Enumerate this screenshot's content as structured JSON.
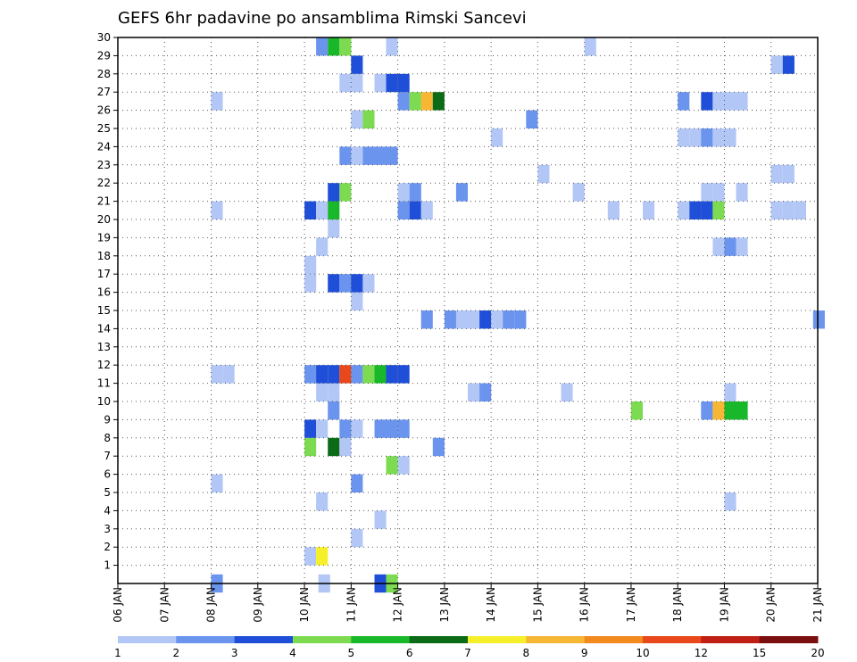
{
  "chart_data": {
    "type": "heatmap",
    "title": "GEFS 6hr padavine po ansamblima Rimski Sancevi",
    "xlabel": "",
    "ylabel": "",
    "x_tick_labels": [
      "06 JAN",
      "07 JAN",
      "08 JAN",
      "09 JAN",
      "10 JAN",
      "11 JAN",
      "12 JAN",
      "13 JAN",
      "14 JAN",
      "15 JAN",
      "16 JAN",
      "17 JAN",
      "18 JAN",
      "19 JAN",
      "20 JAN",
      "21 JAN"
    ],
    "x_range_days": [
      0,
      15
    ],
    "y_tick_labels": [
      "1",
      "2",
      "3",
      "4",
      "5",
      "6",
      "7",
      "8",
      "9",
      "10",
      "11",
      "12",
      "13",
      "14",
      "15",
      "16",
      "17",
      "18",
      "19",
      "20",
      "21",
      "22",
      "23",
      "24",
      "25",
      "26",
      "27",
      "28",
      "29",
      "30"
    ],
    "y_range_members": [
      0,
      30
    ],
    "grid": true,
    "grid_style": "dotted",
    "colorbar": {
      "position": "bottom",
      "labels": [
        "1",
        "2",
        "3",
        "4",
        "5",
        "6",
        "7",
        "8",
        "9",
        "10",
        "12",
        "15",
        "20"
      ],
      "colors": [
        "#b3c7f7",
        "#6a94ee",
        "#1f4fd8",
        "#7ddb52",
        "#19b82a",
        "#0b6b16",
        "#f5f02a",
        "#f7b634",
        "#f28a1d",
        "#e9481c",
        "#c02014",
        "#7a0f0f"
      ]
    },
    "cells_note": "each cell = [day_offset_from_06_JAN, member, precipitation_class]",
    "cells": [
      [
        4.3,
        0,
        1
      ],
      [
        5.5,
        0,
        3
      ],
      [
        5.75,
        0,
        4
      ],
      [
        2.0,
        0,
        2
      ],
      [
        4.0,
        1.5,
        1
      ],
      [
        4.25,
        1.5,
        7
      ],
      [
        5.0,
        2.5,
        1
      ],
      [
        5.5,
        3.5,
        1
      ],
      [
        4.25,
        4.5,
        1
      ],
      [
        13.0,
        4.5,
        1
      ],
      [
        2.0,
        5.5,
        1
      ],
      [
        5.0,
        5.5,
        2
      ],
      [
        5.75,
        6.5,
        4
      ],
      [
        6.0,
        6.5,
        1
      ],
      [
        4.0,
        7.5,
        4
      ],
      [
        4.5,
        7.5,
        6
      ],
      [
        4.75,
        7.5,
        1
      ],
      [
        6.75,
        7.5,
        2
      ],
      [
        4.0,
        8.5,
        3
      ],
      [
        4.25,
        8.5,
        1
      ],
      [
        4.75,
        8.5,
        2
      ],
      [
        5.0,
        8.5,
        1
      ],
      [
        5.5,
        8.5,
        2
      ],
      [
        5.75,
        8.5,
        2
      ],
      [
        6.0,
        8.5,
        2
      ],
      [
        4.5,
        9.5,
        2
      ],
      [
        11.0,
        9.5,
        4
      ],
      [
        12.5,
        9.5,
        2
      ],
      [
        12.75,
        9.5,
        8
      ],
      [
        13.0,
        9.5,
        5
      ],
      [
        13.25,
        9.5,
        5
      ],
      [
        4.25,
        10.5,
        1
      ],
      [
        4.5,
        10.5,
        1
      ],
      [
        7.5,
        10.5,
        1
      ],
      [
        7.75,
        10.5,
        2
      ],
      [
        9.5,
        10.5,
        1
      ],
      [
        13.0,
        10.5,
        1
      ],
      [
        2.0,
        11.5,
        1
      ],
      [
        2.25,
        11.5,
        1
      ],
      [
        4.0,
        11.5,
        2
      ],
      [
        4.25,
        11.5,
        3
      ],
      [
        4.5,
        11.5,
        3
      ],
      [
        4.75,
        11.5,
        10
      ],
      [
        5.0,
        11.5,
        2
      ],
      [
        5.25,
        11.5,
        4
      ],
      [
        5.5,
        11.5,
        5
      ],
      [
        5.75,
        11.5,
        3
      ],
      [
        6.0,
        11.5,
        3
      ],
      [
        6.5,
        14.5,
        2
      ],
      [
        7.0,
        14.5,
        2
      ],
      [
        7.25,
        14.5,
        1
      ],
      [
        7.5,
        14.5,
        1
      ],
      [
        7.75,
        14.5,
        3
      ],
      [
        8.0,
        14.5,
        1
      ],
      [
        8.25,
        14.5,
        2
      ],
      [
        8.5,
        14.5,
        2
      ],
      [
        14.9,
        14.5,
        2
      ],
      [
        5.0,
        15.5,
        1
      ],
      [
        4.0,
        16.5,
        1
      ],
      [
        4.5,
        16.5,
        3
      ],
      [
        4.75,
        16.5,
        2
      ],
      [
        5.0,
        16.5,
        3
      ],
      [
        5.25,
        16.5,
        1
      ],
      [
        4.0,
        17.5,
        1
      ],
      [
        4.25,
        18.5,
        1
      ],
      [
        13.0,
        18.5,
        2
      ],
      [
        13.25,
        18.5,
        1
      ],
      [
        12.75,
        18.5,
        1
      ],
      [
        4.5,
        19.5,
        1
      ],
      [
        2.0,
        20.5,
        1
      ],
      [
        4.0,
        20.5,
        3
      ],
      [
        4.25,
        20.5,
        1
      ],
      [
        4.5,
        20.5,
        5
      ],
      [
        6.0,
        20.5,
        2
      ],
      [
        6.25,
        20.5,
        3
      ],
      [
        6.5,
        20.5,
        1
      ],
      [
        10.5,
        20.5,
        1
      ],
      [
        11.25,
        20.5,
        1
      ],
      [
        12.0,
        20.5,
        1
      ],
      [
        12.25,
        20.5,
        3
      ],
      [
        12.5,
        20.5,
        3
      ],
      [
        12.75,
        20.5,
        4
      ],
      [
        14.0,
        20.5,
        1
      ],
      [
        14.25,
        20.5,
        1
      ],
      [
        14.5,
        20.5,
        1
      ],
      [
        4.5,
        21.5,
        3
      ],
      [
        4.75,
        21.5,
        4
      ],
      [
        6.0,
        21.5,
        1
      ],
      [
        6.25,
        21.5,
        2
      ],
      [
        7.25,
        21.5,
        2
      ],
      [
        9.75,
        21.5,
        1
      ],
      [
        12.5,
        21.5,
        1
      ],
      [
        12.75,
        21.5,
        1
      ],
      [
        13.25,
        21.5,
        1
      ],
      [
        9.0,
        22.5,
        1
      ],
      [
        14.0,
        22.5,
        1
      ],
      [
        14.25,
        22.5,
        1
      ],
      [
        4.75,
        23.5,
        2
      ],
      [
        5.0,
        23.5,
        1
      ],
      [
        5.25,
        23.5,
        2
      ],
      [
        5.5,
        23.5,
        2
      ],
      [
        5.75,
        23.5,
        2
      ],
      [
        8.0,
        24.5,
        1
      ],
      [
        12.0,
        24.5,
        1
      ],
      [
        12.25,
        24.5,
        1
      ],
      [
        12.5,
        24.5,
        2
      ],
      [
        12.75,
        24.5,
        1
      ],
      [
        13.0,
        24.5,
        1
      ],
      [
        5.0,
        25.5,
        1
      ],
      [
        5.25,
        25.5,
        4
      ],
      [
        8.75,
        25.5,
        2
      ],
      [
        2.0,
        26.5,
        1
      ],
      [
        6.0,
        26.5,
        2
      ],
      [
        6.25,
        26.5,
        4
      ],
      [
        6.5,
        26.5,
        8
      ],
      [
        6.75,
        26.5,
        6
      ],
      [
        12.0,
        26.5,
        2
      ],
      [
        12.5,
        26.5,
        3
      ],
      [
        12.75,
        26.5,
        1
      ],
      [
        13.0,
        26.5,
        1
      ],
      [
        13.25,
        26.5,
        1
      ],
      [
        4.75,
        27.5,
        1
      ],
      [
        5.0,
        27.5,
        1
      ],
      [
        5.5,
        27.5,
        1
      ],
      [
        5.75,
        27.5,
        3
      ],
      [
        6.0,
        27.5,
        3
      ],
      [
        5.0,
        28.5,
        3
      ],
      [
        14.0,
        28.5,
        1
      ],
      [
        14.25,
        28.5,
        3
      ],
      [
        4.25,
        29.5,
        2
      ],
      [
        4.5,
        29.5,
        5
      ],
      [
        4.75,
        29.5,
        4
      ],
      [
        5.75,
        29.5,
        1
      ],
      [
        10.0,
        29.5,
        1
      ]
    ]
  }
}
